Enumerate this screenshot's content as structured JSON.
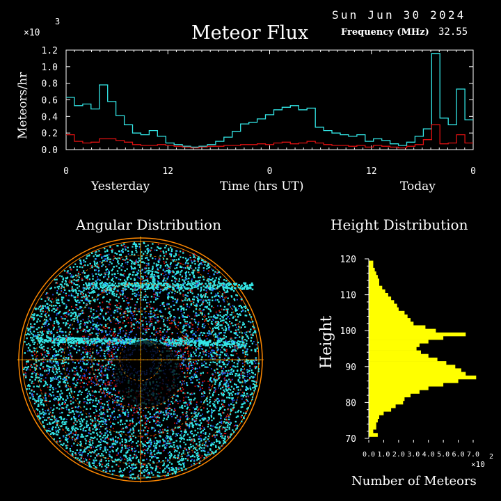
{
  "header": {
    "date": "Sun Jun 30 2024",
    "title": "Meteor Flux",
    "frequency_label": "Frequency (MHz)",
    "frequency_value": "32.55",
    "multiplier": "×10",
    "multiplier_exp": "3"
  },
  "colors": {
    "background": "#000000",
    "cyan": "#33e6e6",
    "red": "#dd1111",
    "yellow": "#ffff00",
    "orange": "#ff8800",
    "axis": "#ffffff"
  },
  "chart_data": [
    {
      "type": "line",
      "title": "Meteor Flux",
      "xlabel": "Time (hrs UT)",
      "ylabel": "Meteors/hr",
      "y_multiplier": "×10^3",
      "ylim": [
        0,
        1.2
      ],
      "y_ticks": [
        "0.0",
        "0.2",
        "0.4",
        "0.6",
        "0.8",
        "1.0",
        "1.2"
      ],
      "x_ticks": [
        "0",
        "12",
        "0",
        "12",
        "0"
      ],
      "x_group_labels": [
        "Yesterday",
        "Time (hrs UT)",
        "Today"
      ],
      "step_hours": 1,
      "series": [
        {
          "color": "cyan",
          "values": [
            0.63,
            0.53,
            0.55,
            0.49,
            0.78,
            0.58,
            0.41,
            0.3,
            0.2,
            0.18,
            0.23,
            0.16,
            0.08,
            0.06,
            0.04,
            0.03,
            0.04,
            0.06,
            0.1,
            0.15,
            0.22,
            0.31,
            0.33,
            0.37,
            0.42,
            0.48,
            0.51,
            0.53,
            0.48,
            0.5,
            0.27,
            0.23,
            0.2,
            0.18,
            0.16,
            0.18,
            0.1,
            0.13,
            0.11,
            0.07,
            0.05,
            0.09,
            0.16,
            0.25,
            1.16,
            0.38,
            0.3,
            0.73,
            0.36
          ]
        },
        {
          "color": "red",
          "values": [
            0.18,
            0.1,
            0.08,
            0.09,
            0.13,
            0.13,
            0.11,
            0.09,
            0.06,
            0.05,
            0.05,
            0.06,
            0.05,
            0.04,
            0.03,
            0.02,
            0.03,
            0.04,
            0.04,
            0.05,
            0.05,
            0.06,
            0.06,
            0.07,
            0.06,
            0.08,
            0.09,
            0.07,
            0.08,
            0.1,
            0.08,
            0.06,
            0.05,
            0.05,
            0.04,
            0.05,
            0.03,
            0.05,
            0.04,
            0.03,
            0.02,
            0.04,
            0.06,
            0.12,
            0.3,
            0.07,
            0.08,
            0.18,
            0.08
          ]
        }
      ]
    },
    {
      "type": "scatter",
      "title": "Angular Distribution",
      "description_visible": false,
      "colors": [
        "cyan",
        "red",
        "blue"
      ]
    },
    {
      "type": "bar",
      "title": "Height Distribution",
      "orientation": "horizontal",
      "ylabel": "Height",
      "xlabel": "Number of Meteors",
      "x_multiplier": "×10^2",
      "ylim": [
        70,
        120
      ],
      "xlim": [
        0,
        7
      ],
      "y_ticks": [
        "70",
        "80",
        "90",
        "100",
        "110",
        "120"
      ],
      "x_ticks": [
        "0.0",
        "1.0",
        "2.0",
        "3.0",
        "4.0",
        "5.0",
        "6.0",
        "7.0"
      ],
      "heights": [
        71,
        72,
        73,
        74,
        75,
        76,
        77,
        78,
        79,
        80,
        81,
        82,
        83,
        84,
        85,
        86,
        87,
        88,
        89,
        90,
        91,
        92,
        93,
        94,
        95,
        96,
        97,
        98,
        99,
        100,
        101,
        102,
        103,
        104,
        105,
        106,
        107,
        108,
        109,
        110,
        111,
        112,
        113,
        114,
        115,
        116,
        117,
        118,
        119
      ],
      "counts": [
        0.6,
        0.3,
        0.5,
        0.5,
        0.6,
        0.7,
        1.0,
        1.5,
        1.8,
        2.3,
        2.4,
        2.8,
        3.4,
        4.0,
        5.0,
        6.0,
        7.2,
        6.5,
        6.2,
        5.8,
        5.2,
        4.6,
        4.0,
        3.5,
        3.2,
        3.4,
        4.0,
        5.0,
        6.5,
        4.5,
        3.8,
        3.0,
        2.8,
        2.6,
        2.4,
        2.0,
        1.9,
        1.7,
        1.5,
        1.3,
        1.1,
        0.9,
        0.7,
        0.7,
        0.6,
        0.5,
        0.4,
        0.3,
        0.3
      ]
    }
  ],
  "labels": {
    "angular_title": "Angular Distribution",
    "height_title": "Height Distribution",
    "height_axis": "Height",
    "count_axis": "Number of Meteors",
    "count_multiplier": "×10",
    "count_multiplier_exp": "2",
    "count_ticks_text": "0.01.02.03.04.05.06.07.0",
    "yesterday": "Yesterday",
    "time_label": "Time (hrs UT)",
    "today": "Today",
    "ylabel": "Meteors/hr"
  }
}
